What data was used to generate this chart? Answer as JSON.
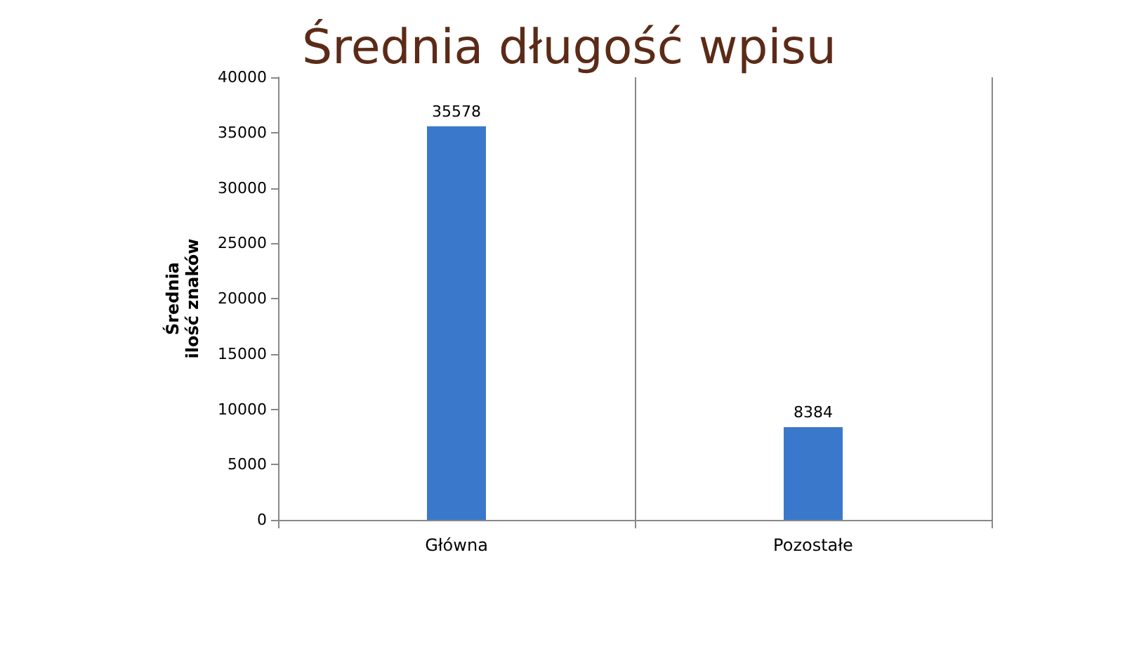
{
  "chart_data": {
    "type": "bar",
    "title": "Średnia długość wpisu",
    "ylabel": "Średnia\nilość znaków",
    "categories": [
      "Główna",
      "Pozostałe"
    ],
    "values": [
      35578,
      8384
    ],
    "color": "#3a78cc",
    "ylim": [
      0,
      40000
    ],
    "yticks": [
      0,
      5000,
      10000,
      15000,
      20000,
      25000,
      30000,
      35000,
      40000
    ],
    "grid": "x",
    "data_labels": true
  }
}
